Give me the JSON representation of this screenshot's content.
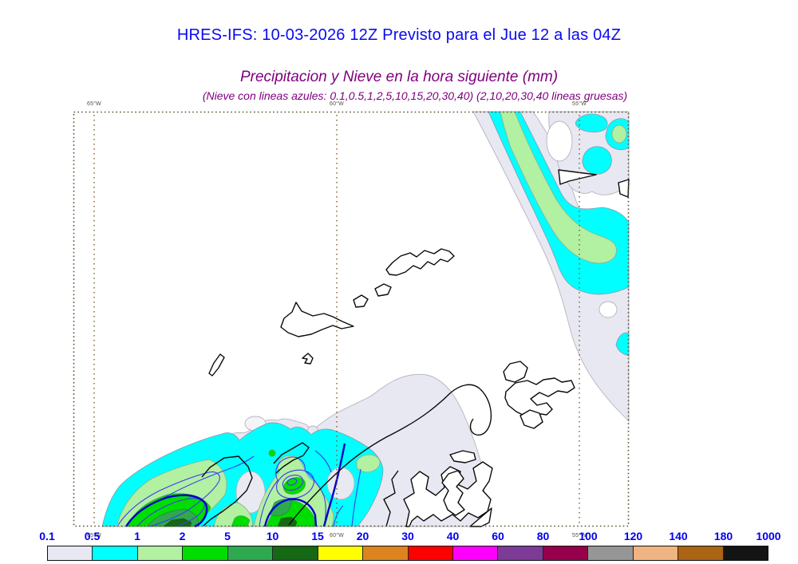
{
  "header": {
    "title": "HRES-IFS: 10-03-2026 12Z Previsto para el Jue 12 a las 04Z",
    "subtitle": "Precipitacion y Nieve en la hora siguiente (mm)",
    "subtitle_note": "(Nieve con lineas azules: 0.1,0.5,1,2,5,10,15,20,30,40)  (2,10,20,30,40 lineas gruesas)",
    "title_color": "#0a0af0",
    "subtitle_color": "#800080"
  },
  "map": {
    "longitude_labels_top": [
      "65°W",
      "60°W",
      "55°W"
    ],
    "longitude_labels_bottom": [
      "65°W",
      "60°W",
      "55°W"
    ],
    "border_color": "#5f5030",
    "grid_color": "#7a5a28",
    "coastline_color": "#0a0a0a",
    "snow_contour_thin_color": "#3c3cf0",
    "snow_contour_thick_color": "#0000c8",
    "precip_level_colors": {
      "p0_1": "#e8e8f2",
      "p0_5": "#00ffff",
      "p1": "#b2f0a2",
      "p2": "#00dd00",
      "p5": "#2fa94f",
      "p10": "#156915"
    }
  },
  "colorbar": {
    "tick_labels": [
      "0.1",
      "0.5",
      "1",
      "2",
      "5",
      "10",
      "15",
      "20",
      "30",
      "40",
      "60",
      "80",
      "100",
      "120",
      "140",
      "180",
      "1000"
    ],
    "cell_colors": [
      "#e8e8f2",
      "#00ffff",
      "#b2f0a2",
      "#00dd00",
      "#2fa94f",
      "#156915",
      "#ffff00",
      "#dd841e",
      "#ff0000",
      "#ff00ff",
      "#7d3a96",
      "#96004b",
      "#969696",
      "#f0b482",
      "#aa6414",
      "#141414"
    ],
    "label_color": "#0000f0"
  }
}
